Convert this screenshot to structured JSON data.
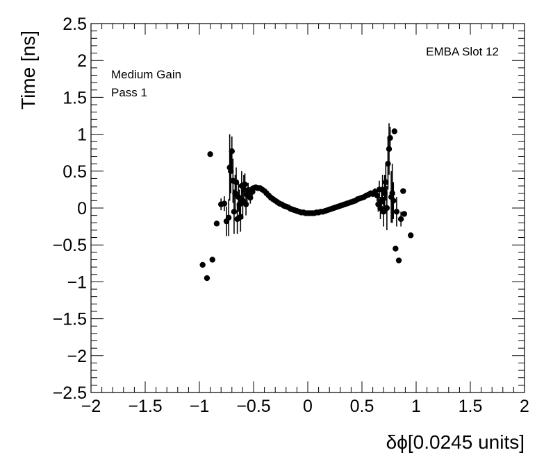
{
  "chart_data": {
    "type": "scatter",
    "xlabel": "δϕ[0.0245 units]",
    "ylabel": "Time [ns]",
    "xlim": [
      -2,
      2
    ],
    "ylim": [
      -2.5,
      2.5
    ],
    "x_ticks": [
      -2,
      -1.5,
      -1,
      -0.5,
      0,
      0.5,
      1,
      1.5,
      2
    ],
    "x_tick_labels": [
      "−2",
      "−1.5",
      "−1",
      "−0.5",
      "0",
      "0.5",
      "1",
      "1.5",
      "2"
    ],
    "y_ticks": [
      -2.5,
      -2,
      -1.5,
      -1,
      -0.5,
      0,
      0.5,
      1,
      1.5,
      2,
      2.5
    ],
    "y_tick_labels": [
      "−2.5",
      "−2",
      "−1.5",
      "−1",
      "−0.5",
      "0",
      "0.5",
      "1",
      "1.5",
      "2",
      "2.5"
    ],
    "annotations": {
      "top_right": "EMBA Slot 12",
      "line1": "Medium Gain",
      "line2": "Pass 1"
    },
    "grid": false,
    "marker_color": "#000000",
    "points": [
      {
        "x": -0.97,
        "y": -0.77,
        "err": 0
      },
      {
        "x": -0.93,
        "y": -0.95,
        "err": 0
      },
      {
        "x": -0.9,
        "y": 0.73,
        "err": 0
      },
      {
        "x": -0.88,
        "y": -0.7,
        "err": 0
      },
      {
        "x": -0.84,
        "y": -0.21,
        "err": 0
      },
      {
        "x": -0.8,
        "y": 0.05,
        "err": 0.08
      },
      {
        "x": -0.77,
        "y": 0.06,
        "err": 0.1
      },
      {
        "x": -0.75,
        "y": -0.18,
        "err": 0.2
      },
      {
        "x": -0.73,
        "y": -0.13,
        "err": 0.25
      },
      {
        "x": -0.72,
        "y": 0.55,
        "err": 0.45
      },
      {
        "x": -0.71,
        "y": 0.5,
        "err": 0.3
      },
      {
        "x": -0.7,
        "y": 0.77,
        "err": 0.2
      },
      {
        "x": -0.69,
        "y": 0.37,
        "err": 0.3
      },
      {
        "x": -0.68,
        "y": -0.05,
        "err": 0.3
      },
      {
        "x": -0.67,
        "y": 0.2,
        "err": 0.25
      },
      {
        "x": -0.66,
        "y": 0.35,
        "err": 0.2
      },
      {
        "x": -0.65,
        "y": -0.15,
        "err": 0.2
      },
      {
        "x": -0.64,
        "y": 0.15,
        "err": 0.2
      },
      {
        "x": -0.63,
        "y": 0.05,
        "err": 0.2
      },
      {
        "x": -0.62,
        "y": -0.12,
        "err": 0.2
      },
      {
        "x": -0.61,
        "y": 0.3,
        "err": 0.2
      },
      {
        "x": -0.6,
        "y": 0.1,
        "err": 0.25
      },
      {
        "x": -0.59,
        "y": 0.25,
        "err": 0.2
      },
      {
        "x": -0.58,
        "y": 0.32,
        "err": 0.15
      },
      {
        "x": -0.57,
        "y": 0.05,
        "err": 0.15
      },
      {
        "x": -0.56,
        "y": 0.18,
        "err": 0.1
      },
      {
        "x": -0.55,
        "y": 0.24,
        "err": 0.1
      },
      {
        "x": -0.54,
        "y": 0.2,
        "err": 0.08
      },
      {
        "x": -0.53,
        "y": 0.14,
        "err": 0.08
      },
      {
        "x": -0.52,
        "y": 0.25,
        "err": 0.05
      },
      {
        "x": -0.51,
        "y": 0.22,
        "err": 0.05
      },
      {
        "x": -0.5,
        "y": 0.27,
        "err": 0.03
      },
      {
        "x": -0.48,
        "y": 0.28,
        "err": 0.02
      },
      {
        "x": -0.46,
        "y": 0.27,
        "err": 0.02
      },
      {
        "x": -0.44,
        "y": 0.27,
        "err": 0.02
      },
      {
        "x": -0.42,
        "y": 0.25,
        "err": 0.02
      },
      {
        "x": -0.4,
        "y": 0.23,
        "err": 0.02
      },
      {
        "x": -0.38,
        "y": 0.2,
        "err": 0.02
      },
      {
        "x": -0.36,
        "y": 0.17,
        "err": 0.02
      },
      {
        "x": -0.34,
        "y": 0.14,
        "err": 0.02
      },
      {
        "x": -0.32,
        "y": 0.12,
        "err": 0.02
      },
      {
        "x": -0.3,
        "y": 0.1,
        "err": 0.02
      },
      {
        "x": -0.28,
        "y": 0.08,
        "err": 0.02
      },
      {
        "x": -0.26,
        "y": 0.06,
        "err": 0.02
      },
      {
        "x": -0.24,
        "y": 0.05,
        "err": 0.02
      },
      {
        "x": -0.22,
        "y": 0.03,
        "err": 0.02
      },
      {
        "x": -0.2,
        "y": 0.02,
        "err": 0.02
      },
      {
        "x": -0.18,
        "y": 0.01,
        "err": 0.02
      },
      {
        "x": -0.16,
        "y": -0.01,
        "err": 0.02
      },
      {
        "x": -0.14,
        "y": -0.02,
        "err": 0.02
      },
      {
        "x": -0.12,
        "y": -0.03,
        "err": 0.02
      },
      {
        "x": -0.1,
        "y": -0.04,
        "err": 0.02
      },
      {
        "x": -0.08,
        "y": -0.05,
        "err": 0.02
      },
      {
        "x": -0.06,
        "y": -0.06,
        "err": 0.02
      },
      {
        "x": -0.04,
        "y": -0.06,
        "err": 0.02
      },
      {
        "x": -0.02,
        "y": -0.07,
        "err": 0.02
      },
      {
        "x": 0.0,
        "y": -0.07,
        "err": 0.02
      },
      {
        "x": 0.02,
        "y": -0.07,
        "err": 0.02
      },
      {
        "x": 0.04,
        "y": -0.07,
        "err": 0.02
      },
      {
        "x": 0.06,
        "y": -0.07,
        "err": 0.02
      },
      {
        "x": 0.08,
        "y": -0.06,
        "err": 0.02
      },
      {
        "x": 0.1,
        "y": -0.06,
        "err": 0.02
      },
      {
        "x": 0.12,
        "y": -0.05,
        "err": 0.02
      },
      {
        "x": 0.14,
        "y": -0.05,
        "err": 0.02
      },
      {
        "x": 0.16,
        "y": -0.04,
        "err": 0.02
      },
      {
        "x": 0.18,
        "y": -0.03,
        "err": 0.02
      },
      {
        "x": 0.2,
        "y": -0.02,
        "err": 0.02
      },
      {
        "x": 0.22,
        "y": -0.01,
        "err": 0.02
      },
      {
        "x": 0.24,
        "y": 0.0,
        "err": 0.02
      },
      {
        "x": 0.26,
        "y": 0.01,
        "err": 0.02
      },
      {
        "x": 0.28,
        "y": 0.02,
        "err": 0.02
      },
      {
        "x": 0.3,
        "y": 0.03,
        "err": 0.02
      },
      {
        "x": 0.32,
        "y": 0.04,
        "err": 0.02
      },
      {
        "x": 0.34,
        "y": 0.05,
        "err": 0.02
      },
      {
        "x": 0.36,
        "y": 0.06,
        "err": 0.02
      },
      {
        "x": 0.38,
        "y": 0.07,
        "err": 0.02
      },
      {
        "x": 0.4,
        "y": 0.08,
        "err": 0.02
      },
      {
        "x": 0.42,
        "y": 0.09,
        "err": 0.02
      },
      {
        "x": 0.44,
        "y": 0.1,
        "err": 0.02
      },
      {
        "x": 0.46,
        "y": 0.12,
        "err": 0.02
      },
      {
        "x": 0.48,
        "y": 0.13,
        "err": 0.02
      },
      {
        "x": 0.5,
        "y": 0.14,
        "err": 0.02
      },
      {
        "x": 0.52,
        "y": 0.15,
        "err": 0.03
      },
      {
        "x": 0.54,
        "y": 0.17,
        "err": 0.03
      },
      {
        "x": 0.56,
        "y": 0.18,
        "err": 0.03
      },
      {
        "x": 0.58,
        "y": 0.2,
        "err": 0.03
      },
      {
        "x": 0.6,
        "y": 0.19,
        "err": 0.04
      },
      {
        "x": 0.62,
        "y": 0.22,
        "err": 0.05
      },
      {
        "x": 0.64,
        "y": 0.17,
        "err": 0.08
      },
      {
        "x": 0.65,
        "y": 0.05,
        "err": 0.1
      },
      {
        "x": 0.66,
        "y": 0.25,
        "err": 0.12
      },
      {
        "x": 0.67,
        "y": 0.0,
        "err": 0.15
      },
      {
        "x": 0.68,
        "y": 0.1,
        "err": 0.18
      },
      {
        "x": 0.69,
        "y": 0.25,
        "err": 0.2
      },
      {
        "x": 0.7,
        "y": -0.05,
        "err": 0.2
      },
      {
        "x": 0.71,
        "y": 0.2,
        "err": 0.25
      },
      {
        "x": 0.72,
        "y": 0.35,
        "err": 0.25
      },
      {
        "x": 0.73,
        "y": 0.0,
        "err": 0.3
      },
      {
        "x": 0.74,
        "y": 0.6,
        "err": 0.35
      },
      {
        "x": 0.75,
        "y": 0.8,
        "err": 0.35
      },
      {
        "x": 0.76,
        "y": 0.95,
        "err": 0.15
      },
      {
        "x": 0.77,
        "y": 0.15,
        "err": 0.35
      },
      {
        "x": 0.78,
        "y": 0.2,
        "err": 0.4
      },
      {
        "x": 0.79,
        "y": 0.1,
        "err": 0.25
      },
      {
        "x": 0.8,
        "y": 1.04,
        "err": 0
      },
      {
        "x": 0.81,
        "y": -0.55,
        "err": 0
      },
      {
        "x": 0.82,
        "y": -0.05,
        "err": 0.2
      },
      {
        "x": 0.84,
        "y": -0.71,
        "err": 0
      },
      {
        "x": 0.86,
        "y": -0.15,
        "err": 0.1
      },
      {
        "x": 0.88,
        "y": 0.23,
        "err": 0
      },
      {
        "x": 0.89,
        "y": -0.08,
        "err": 0
      },
      {
        "x": 0.95,
        "y": -0.37,
        "err": 0
      }
    ]
  }
}
